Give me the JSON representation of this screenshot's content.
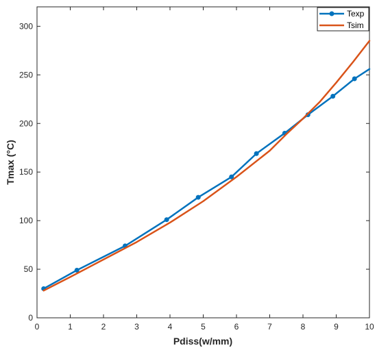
{
  "chart_data": {
    "type": "line",
    "title": "",
    "xlabel": "Pdiss(w/mm)",
    "ylabel": "Tmax (°C)",
    "xlim": [
      0,
      10
    ],
    "ylim": [
      0,
      320
    ],
    "xticks": [
      0,
      1,
      2,
      3,
      4,
      5,
      6,
      7,
      8,
      9,
      10
    ],
    "yticks": [
      0,
      50,
      100,
      150,
      200,
      250,
      300
    ],
    "grid": false,
    "legend_position": "top-right",
    "series": [
      {
        "name": "Texp",
        "color": "#0072BD",
        "marker": "circle",
        "x": [
          0.2,
          1.2,
          2.65,
          3.9,
          4.85,
          5.85,
          6.6,
          7.45,
          8.15,
          8.9,
          9.55,
          10.0
        ],
        "y": [
          30,
          49,
          74,
          101,
          124,
          145,
          169,
          190,
          209,
          228,
          246,
          256
        ]
      },
      {
        "name": "Tsim",
        "color": "#D95319",
        "marker": "none",
        "x": [
          0.2,
          1.0,
          2.0,
          3.0,
          4.0,
          5.0,
          6.0,
          7.0,
          7.5,
          8.0,
          8.5,
          9.0,
          9.5,
          10.0
        ],
        "y": [
          28,
          42,
          60,
          78,
          98,
          120,
          145,
          172,
          189,
          205,
          222,
          242,
          263,
          285
        ]
      }
    ]
  }
}
